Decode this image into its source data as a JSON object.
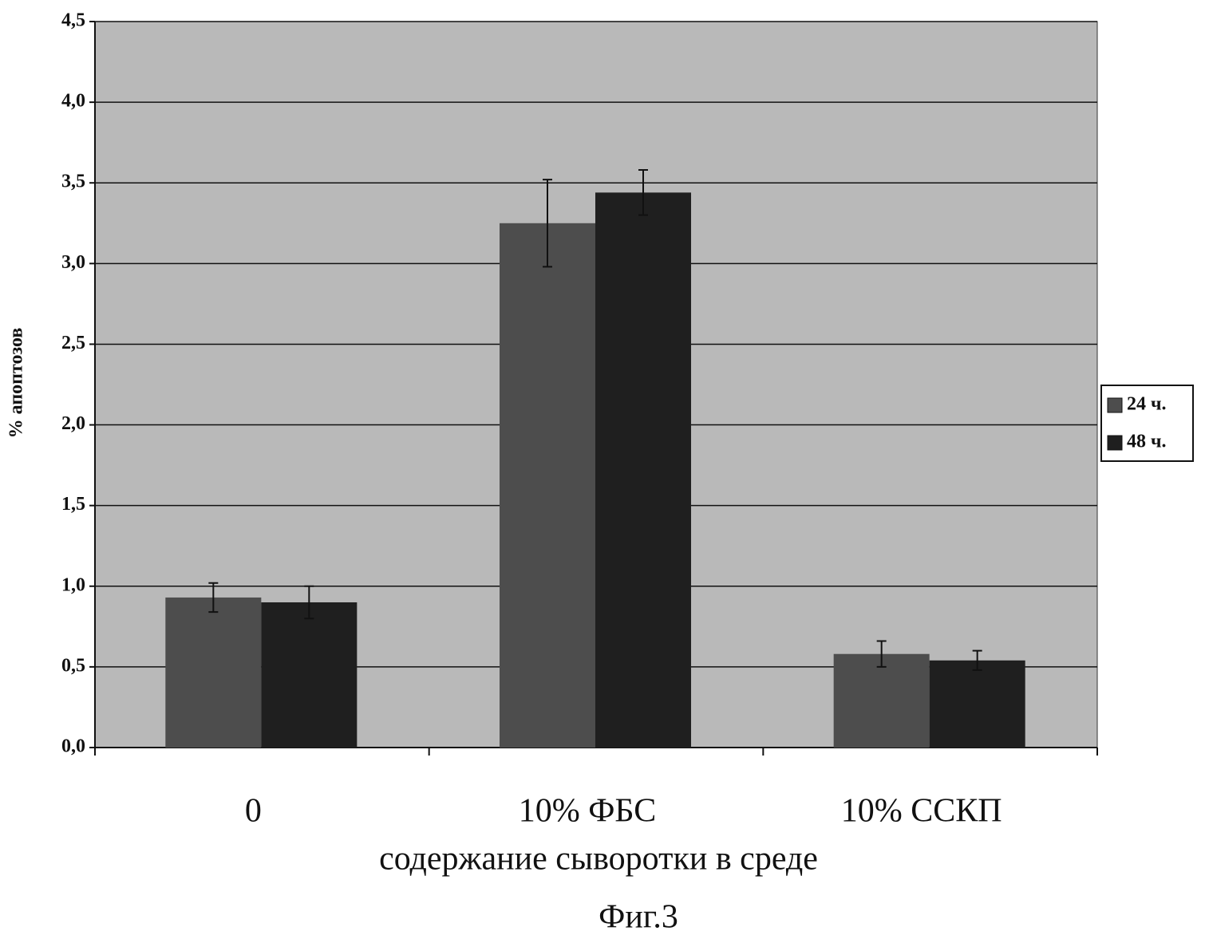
{
  "chart_data": {
    "type": "bar",
    "x_label": "содержание сыворотки в среде",
    "y_label": "% апоптозов",
    "caption": "Фиг.3",
    "categories": [
      "0",
      "10% ФБС",
      "10% ССКП"
    ],
    "series": [
      {
        "name": "24 ч.",
        "color": "#4d4d4d",
        "values": [
          0.93,
          3.25,
          0.58
        ],
        "errors": [
          0.09,
          0.27,
          0.08
        ]
      },
      {
        "name": "48 ч.",
        "color": "#1f1f1f",
        "values": [
          0.9,
          3.44,
          0.54
        ],
        "errors": [
          0.1,
          0.14,
          0.06
        ]
      }
    ],
    "ylim": [
      0,
      4.5
    ],
    "yticks": [
      {
        "value": 0,
        "label": "0,0"
      },
      {
        "value": 0.5,
        "label": "0,5"
      },
      {
        "value": 1,
        "label": "1,0"
      },
      {
        "value": 1.5,
        "label": "1,5"
      },
      {
        "value": 2,
        "label": "2,0"
      },
      {
        "value": 2.5,
        "label": "2,5"
      },
      {
        "value": 3,
        "label": "3,0"
      },
      {
        "value": 3.5,
        "label": "3,5"
      },
      {
        "value": 4,
        "label": "4,0"
      },
      {
        "value": 4.5,
        "label": "4,5"
      }
    ],
    "grid": true,
    "background": "#b9b9b9"
  }
}
